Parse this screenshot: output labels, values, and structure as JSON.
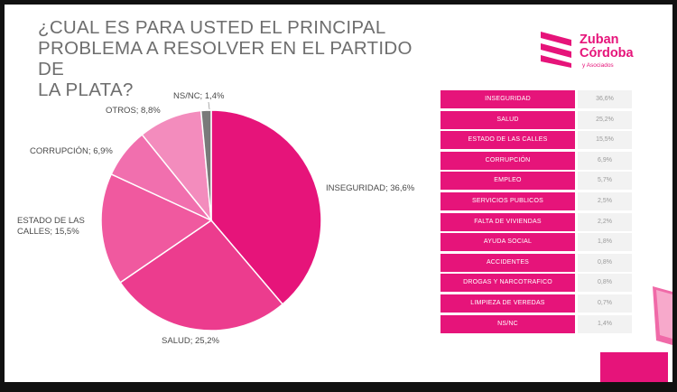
{
  "title": {
    "line1": "¿CUAL ES PARA USTED EL PRINCIPAL",
    "line2": "PROBLEMA A RESOLVER EN EL PARTIDO DE",
    "line3": "LA PLATA?"
  },
  "logo": {
    "name_line1": "Zuban",
    "name_line2": "Córdoba",
    "subtitle": "y Asociados"
  },
  "colors": {
    "accent": "#e6147a",
    "slice_inseguridad": "#e6147a",
    "slice_salud": "#ec3c8e",
    "slice_estado": "#f0599f",
    "slice_corrupcion": "#f16fae",
    "slice_otros": "#f38cbd",
    "slice_nsnc": "#7a7a7a"
  },
  "chart_data": [
    {
      "type": "pie",
      "slices": [
        {
          "label": "INSEGURIDAD; 36,6%",
          "value": 36.6
        },
        {
          "label": "SALUD; 25,2%",
          "value": 25.2
        },
        {
          "label": "ESTADO DE LAS CALLES; 15,5%",
          "value": 15.5
        },
        {
          "label": "CORRUPCIÓN; 6,9%",
          "value": 6.9
        },
        {
          "label": "OTROS; 8,8%",
          "value": 8.8
        },
        {
          "label": "NS/NC; 1,4%",
          "value": 1.4
        }
      ]
    },
    {
      "type": "table",
      "rows": [
        {
          "label": "INSEGURIDAD",
          "value": "36,6%"
        },
        {
          "label": "SALUD",
          "value": "25,2%"
        },
        {
          "label": "ESTADO DE LAS CALLES",
          "value": "15,5%"
        },
        {
          "label": "CORRUPCIÓN",
          "value": "6,9%"
        },
        {
          "label": "EMPLEO",
          "value": "5,7%"
        },
        {
          "label": "SERVICIOS PUBLICOS",
          "value": "2,5%"
        },
        {
          "label": "FALTA DE VIVIENDAS",
          "value": "2,2%"
        },
        {
          "label": "AYUDA SOCIAL",
          "value": "1,8%"
        },
        {
          "label": "ACCIDENTES",
          "value": "0,8%"
        },
        {
          "label": "DROGAS Y NARCOTRAFICO",
          "value": "0,8%"
        },
        {
          "label": "LIMPIEZA DE VEREDAS",
          "value": "0,7%"
        },
        {
          "label": "NS/NC",
          "value": "1,4%"
        }
      ]
    }
  ]
}
